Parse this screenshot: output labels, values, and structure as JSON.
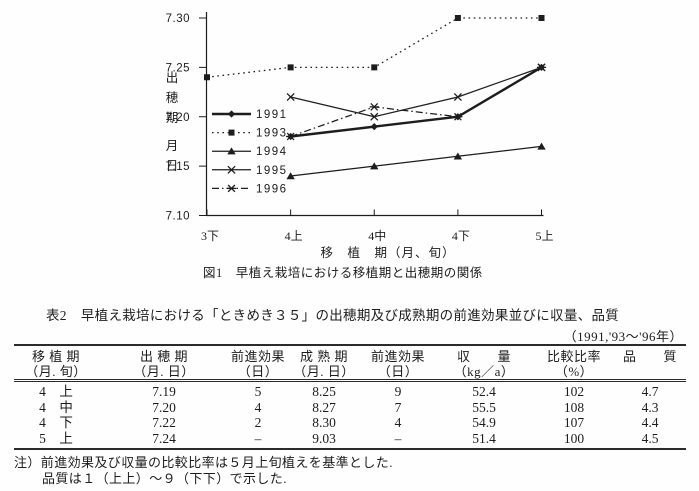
{
  "page": {
    "background": "#fefefe",
    "ink": "#1d1d1d"
  },
  "chart_data": {
    "type": "line",
    "title": "図1　早植え栽培における移植期と出穂期の関係",
    "xlabel": "移　植　期（月、旬）",
    "ylabel_top": "出穂期",
    "ylabel_bottom": "月日",
    "categories": [
      "3下",
      "4上",
      "4中",
      "4下",
      "5上"
    ],
    "ylim": [
      7.1,
      7.3
    ],
    "yticks": [
      7.3,
      7.25,
      7.2,
      7.15,
      7.1
    ],
    "ytick_labels": [
      "7.30",
      "7.25",
      "7.20",
      "7.15",
      "7.10"
    ],
    "grid": false,
    "legend_position": "inside-upper-left",
    "series": [
      {
        "name": "1991",
        "marker": "diamond",
        "line_style": "solid-thick",
        "values": [
          null,
          7.18,
          7.19,
          7.2,
          7.25
        ]
      },
      {
        "name": "1993",
        "marker": "square",
        "line_style": "dotted",
        "values": [
          7.24,
          7.25,
          7.25,
          7.3,
          7.3
        ]
      },
      {
        "name": "1994",
        "marker": "triangle",
        "line_style": "solid",
        "values": [
          null,
          7.14,
          7.15,
          7.16,
          7.17
        ]
      },
      {
        "name": "1995",
        "marker": "x",
        "line_style": "solid",
        "values": [
          null,
          7.22,
          7.2,
          7.22,
          7.25
        ]
      },
      {
        "name": "1996",
        "marker": "asterisk",
        "line_style": "dash-dot",
        "values": [
          null,
          7.18,
          7.21,
          7.2,
          7.25
        ]
      }
    ]
  },
  "table": {
    "label": "表2",
    "title": "早植え栽培における「ときめき３５」の出穂期及び成熟期の前進効果並びに収量、品質",
    "years_note": "（1991,'93～'96年）",
    "columns": [
      {
        "name": "移 植 期",
        "unit": "（月. 旬）"
      },
      {
        "name": "出 穂 期",
        "unit": "（月. 日）"
      },
      {
        "name": "前進効果",
        "unit": "（日）"
      },
      {
        "name": "成 熟 期",
        "unit": "（月. 日）"
      },
      {
        "name": "前進効果",
        "unit": "（日）"
      },
      {
        "name": "収　　量",
        "unit": "（kg／a）"
      },
      {
        "name": "比較比率",
        "unit": "（%）"
      },
      {
        "name": "品　　質",
        "unit": ""
      }
    ],
    "rows": [
      [
        "4　上",
        "7.19",
        "5",
        "8.25",
        "9",
        "52.4",
        "102",
        "4.7"
      ],
      [
        "4　中",
        "7.20",
        "4",
        "8.27",
        "7",
        "55.5",
        "108",
        "4.3"
      ],
      [
        "4　下",
        "7.22",
        "2",
        "8.30",
        "4",
        "54.9",
        "107",
        "4.4"
      ],
      [
        "5　上",
        "7.24",
        "–",
        "9.03",
        "–",
        "51.4",
        "100",
        "4.5"
      ]
    ],
    "notes": [
      "注）前進効果及び収量の比較比率は５月上旬植えを基準とした.",
      "品質は１（上上）～９（下下）で示した."
    ]
  }
}
